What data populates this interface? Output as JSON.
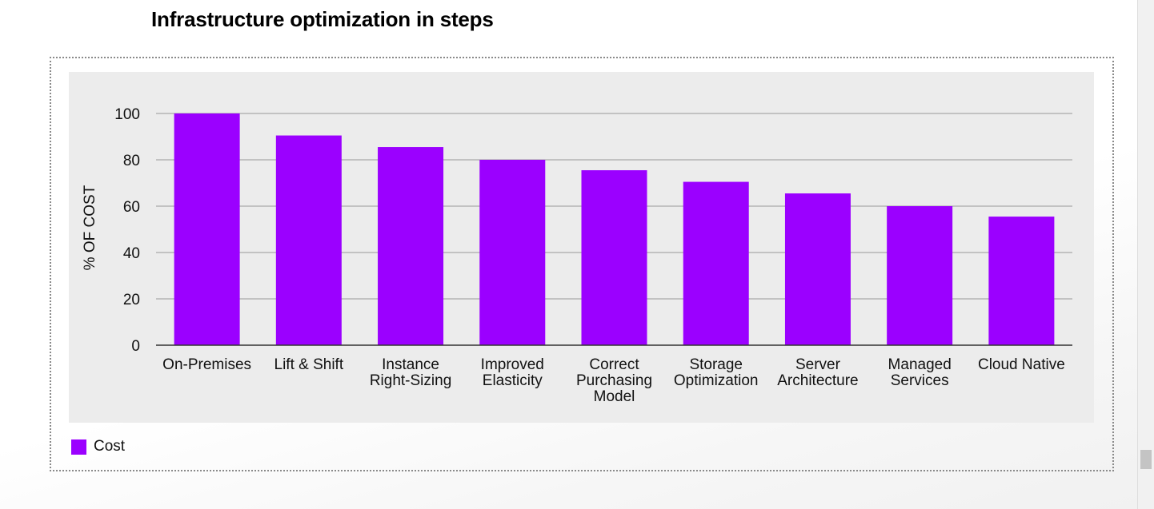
{
  "page": {
    "title": "Infrastructure optimization in steps"
  },
  "colors": {
    "bar": "#9b00ff",
    "grid": "#a8a8a8",
    "axis": "#333333",
    "text": "#111111"
  },
  "chart_data": {
    "type": "bar",
    "title": "",
    "ylabel": "% OF COST",
    "xlabel": "",
    "ylim": [
      0,
      100
    ],
    "yticks": [
      0,
      20,
      40,
      60,
      80,
      100
    ],
    "grid": true,
    "legend_position": "bottom-left",
    "categories": [
      "On-Premises",
      "Lift & Shift",
      "Instance Right-Sizing",
      "Improved Elasticity",
      "Correct Purchasing Model",
      "Storage Optimization",
      "Server Architecture",
      "Managed Services",
      "Cloud Native"
    ],
    "category_lines": [
      [
        "On-Premises"
      ],
      [
        "Lift & Shift"
      ],
      [
        "Instance",
        "Right-Sizing"
      ],
      [
        "Improved",
        "Elasticity"
      ],
      [
        "Correct",
        "Purchasing",
        "Model"
      ],
      [
        "Storage",
        "Optimization"
      ],
      [
        "Server",
        "Architecture"
      ],
      [
        "Managed",
        "Services"
      ],
      [
        "Cloud Native"
      ]
    ],
    "series": [
      {
        "name": "Cost",
        "values": [
          100,
          90.5,
          85.5,
          80,
          75.5,
          70.5,
          65.5,
          60,
          55.5
        ]
      }
    ]
  }
}
